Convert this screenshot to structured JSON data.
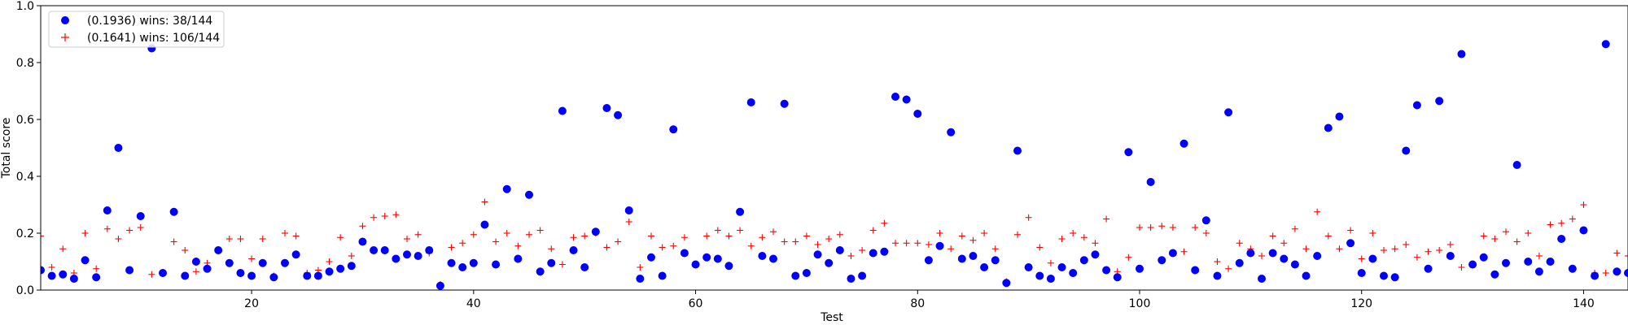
{
  "chart_data": {
    "type": "scatter",
    "xlabel": "Test",
    "ylabel": "Total score",
    "xlim": [
      1,
      144
    ],
    "ylim": [
      0.0,
      1.0
    ],
    "x_ticks": [
      20,
      40,
      60,
      80,
      100,
      120,
      140
    ],
    "x_tick_labels": [
      "20",
      "40",
      "60",
      "80",
      "100",
      "120",
      "140"
    ],
    "y_ticks": [
      0.0,
      0.2,
      0.4,
      0.6,
      0.8,
      1.0
    ],
    "y_tick_labels": [
      "0.0",
      "0.2",
      "0.4",
      "0.6",
      "0.8",
      "1.0"
    ],
    "grid": false,
    "legend_position": "top-left",
    "x": [
      1,
      2,
      3,
      4,
      5,
      6,
      7,
      8,
      9,
      10,
      11,
      12,
      13,
      14,
      15,
      16,
      17,
      18,
      19,
      20,
      21,
      22,
      23,
      24,
      25,
      26,
      27,
      28,
      29,
      30,
      31,
      32,
      33,
      34,
      35,
      36,
      37,
      38,
      39,
      40,
      41,
      42,
      43,
      44,
      45,
      46,
      47,
      48,
      49,
      50,
      51,
      52,
      53,
      54,
      55,
      56,
      57,
      58,
      59,
      60,
      61,
      62,
      63,
      64,
      65,
      66,
      67,
      68,
      69,
      70,
      71,
      72,
      73,
      74,
      75,
      76,
      77,
      78,
      79,
      80,
      81,
      82,
      83,
      84,
      85,
      86,
      87,
      88,
      89,
      90,
      91,
      92,
      93,
      94,
      95,
      96,
      97,
      98,
      99,
      100,
      101,
      102,
      103,
      104,
      105,
      106,
      107,
      108,
      109,
      110,
      111,
      112,
      113,
      114,
      115,
      116,
      117,
      118,
      119,
      120,
      121,
      122,
      123,
      124,
      125,
      126,
      127,
      128,
      129,
      130,
      131,
      132,
      133,
      134,
      135,
      136,
      137,
      138,
      139,
      140,
      141,
      142,
      143,
      144
    ],
    "series": [
      {
        "name": "(0.1936) wins: 38/144",
        "marker": "circle",
        "color": "#0000ff",
        "values": [
          0.07,
          0.05,
          0.055,
          0.04,
          0.105,
          0.045,
          0.28,
          0.5,
          0.07,
          0.26,
          0.85,
          0.06,
          0.275,
          0.05,
          0.1,
          0.075,
          0.14,
          0.095,
          0.06,
          0.05,
          0.095,
          0.045,
          0.095,
          0.125,
          0.05,
          0.05,
          0.065,
          0.075,
          0.085,
          0.17,
          0.14,
          0.14,
          0.11,
          0.125,
          0.12,
          0.14,
          0.015,
          0.095,
          0.08,
          0.095,
          0.23,
          0.09,
          0.355,
          0.11,
          0.335,
          0.065,
          0.095,
          0.63,
          0.14,
          0.08,
          0.205,
          0.64,
          0.615,
          0.28,
          0.04,
          0.115,
          0.05,
          0.565,
          0.13,
          0.09,
          0.115,
          0.11,
          0.085,
          0.275,
          0.66,
          0.12,
          0.11,
          0.655,
          0.05,
          0.06,
          0.125,
          0.095,
          0.14,
          0.04,
          0.05,
          0.13,
          0.135,
          0.68,
          0.67,
          0.62,
          0.105,
          0.155,
          0.555,
          0.11,
          0.12,
          0.08,
          0.105,
          0.025,
          0.49,
          0.08,
          0.05,
          0.04,
          0.08,
          0.06,
          0.105,
          0.125,
          0.07,
          0.045,
          0.485,
          0.075,
          0.38,
          0.105,
          0.13,
          0.515,
          0.07,
          0.245,
          0.05,
          0.625,
          0.095,
          0.13,
          0.04,
          0.13,
          0.11,
          0.09,
          0.05,
          0.12,
          0.57,
          0.61,
          0.165,
          0.06,
          0.11,
          0.05,
          0.045,
          0.49,
          0.65,
          0.075,
          0.665,
          0.12,
          0.83,
          0.09,
          0.115,
          0.055,
          0.095,
          0.44,
          0.1,
          0.065,
          0.1,
          0.18,
          0.075,
          0.21,
          0.05,
          0.865,
          0.065,
          0.06
        ]
      },
      {
        "name": "(0.1641) wins: 106/144",
        "marker": "plus",
        "color": "#ff0000",
        "values": [
          0.19,
          0.08,
          0.145,
          0.06,
          0.2,
          0.075,
          0.215,
          0.18,
          0.21,
          0.22,
          0.055,
          0.06,
          0.17,
          0.14,
          0.065,
          0.095,
          0.14,
          0.18,
          0.18,
          0.11,
          0.18,
          0.05,
          0.2,
          0.19,
          0.06,
          0.07,
          0.1,
          0.185,
          0.12,
          0.225,
          0.255,
          0.26,
          0.265,
          0.18,
          0.195,
          0.13,
          0.02,
          0.15,
          0.165,
          0.195,
          0.31,
          0.17,
          0.2,
          0.155,
          0.195,
          0.21,
          0.145,
          0.09,
          0.185,
          0.19,
          0.2,
          0.15,
          0.17,
          0.24,
          0.08,
          0.19,
          0.15,
          0.155,
          0.185,
          0.09,
          0.19,
          0.21,
          0.19,
          0.21,
          0.155,
          0.185,
          0.205,
          0.17,
          0.17,
          0.19,
          0.16,
          0.18,
          0.195,
          0.12,
          0.14,
          0.21,
          0.235,
          0.165,
          0.165,
          0.165,
          0.16,
          0.2,
          0.145,
          0.19,
          0.175,
          0.2,
          0.145,
          0.03,
          0.195,
          0.255,
          0.15,
          0.095,
          0.18,
          0.2,
          0.185,
          0.165,
          0.25,
          0.065,
          0.115,
          0.22,
          0.22,
          0.225,
          0.22,
          0.135,
          0.22,
          0.2,
          0.1,
          0.075,
          0.165,
          0.145,
          0.12,
          0.19,
          0.165,
          0.215,
          0.145,
          0.275,
          0.19,
          0.145,
          0.21,
          0.11,
          0.2,
          0.14,
          0.145,
          0.16,
          0.115,
          0.135,
          0.14,
          0.16,
          0.08,
          0.09,
          0.19,
          0.18,
          0.205,
          0.17,
          0.2,
          0.12,
          0.23,
          0.235,
          0.25,
          0.3,
          0.06,
          0.06,
          0.13,
          0.12
        ]
      }
    ]
  }
}
